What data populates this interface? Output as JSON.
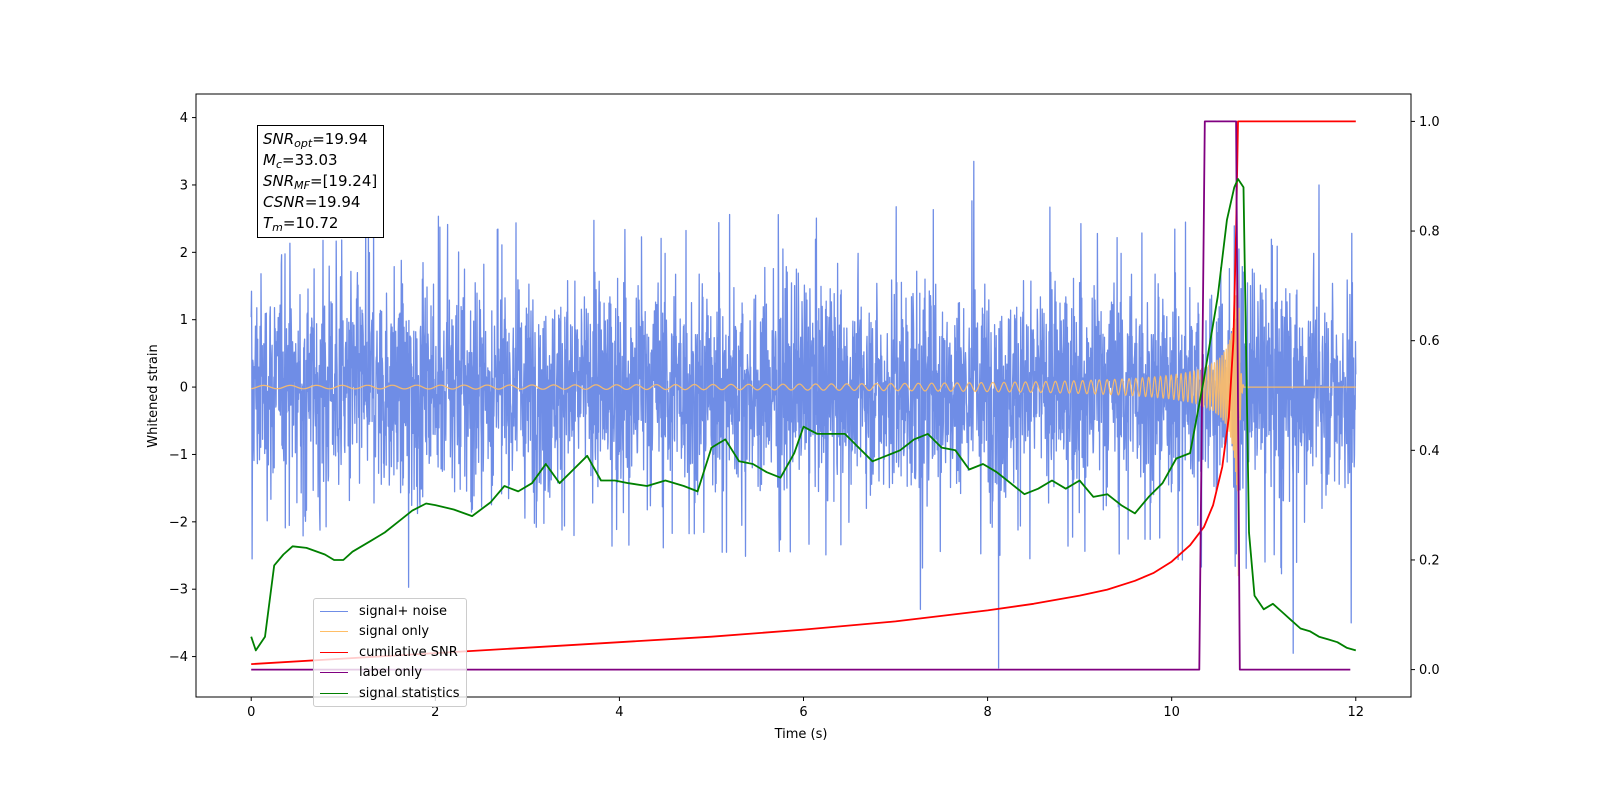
{
  "chart_data": {
    "type": "line",
    "title": "",
    "xlabel": "Time (s)",
    "ylabel": "Whitened strain",
    "y2label": "",
    "xlim": [
      -0.6,
      12.6
    ],
    "ylim": [
      -4.6,
      4.35
    ],
    "y2lim": [
      -0.05,
      1.05
    ],
    "xticks": [
      0,
      2,
      4,
      6,
      8,
      10,
      12
    ],
    "yticks": [
      -4,
      -3,
      -2,
      -1,
      0,
      1,
      2,
      3,
      4
    ],
    "y2ticks": [
      0.0,
      0.2,
      0.4,
      0.6,
      0.8,
      1.0
    ],
    "tick_labels": {
      "x": [
        "0",
        "2",
        "4",
        "6",
        "8",
        "10",
        "12"
      ],
      "y": [
        "−4",
        "−3",
        "−2",
        "−1",
        "0",
        "1",
        "2",
        "3",
        "4"
      ],
      "y2": [
        "0.0",
        "0.2",
        "0.4",
        "0.6",
        "0.8",
        "1.0"
      ]
    },
    "grid": false,
    "legend_position": "lower-left",
    "annotations": [
      {
        "sym": "SNR",
        "sub": "opt",
        "value": "=19.94"
      },
      {
        "sym": "M",
        "sub": "c",
        "value": "=33.03"
      },
      {
        "sym": "SNR",
        "sub": "MF",
        "value": "=[19.24]"
      },
      {
        "sym": "CSNR",
        "sub": "",
        "value": "=19.94"
      },
      {
        "sym": "T",
        "sub": "m",
        "value": "=10.72"
      }
    ],
    "series": [
      {
        "name": "signal+ noise",
        "axis": "left",
        "color": "#6f8de6",
        "kind": "noise",
        "x_range": [
          0,
          12
        ],
        "envelope_min": [
          -2.5,
          -2.0,
          -2.0,
          -2.2,
          -2.4,
          -2.5,
          -2.6,
          -2.7,
          -2.8,
          -2.5,
          -2.6,
          -2.9,
          -3.0
        ],
        "envelope_max": [
          2.0,
          2.4,
          2.6,
          2.6,
          2.5,
          2.6,
          2.6,
          2.7,
          3.0,
          2.6,
          2.5,
          2.4,
          2.3
        ],
        "spikes": [
          {
            "x": 8.12,
            "y": -4.17
          },
          {
            "x": 7.85,
            "y": 3.35
          },
          {
            "x": 11.95,
            "y": -3.5
          },
          {
            "x": 11.32,
            "y": -3.95
          },
          {
            "x": 11.6,
            "y": 3.0
          },
          {
            "x": 1.71,
            "y": -2.97
          },
          {
            "x": 7.27,
            "y": -3.3
          },
          {
            "x": 0.01,
            "y": -2.55
          }
        ]
      },
      {
        "name": "signal only",
        "axis": "left",
        "color": "#ffbe66",
        "kind": "chirp",
        "x_range": [
          0,
          12
        ],
        "merger_time": 10.72,
        "peak_amplitude": 2.0
      },
      {
        "name": "cumilative SNR",
        "axis": "right",
        "color": "#ff0000",
        "x": [
          0.0,
          1.0,
          2.0,
          3.0,
          4.0,
          5.0,
          6.0,
          7.0,
          7.5,
          8.0,
          8.5,
          9.0,
          9.3,
          9.6,
          9.8,
          10.0,
          10.2,
          10.35,
          10.45,
          10.55,
          10.62,
          10.67,
          10.7,
          10.72,
          10.75,
          11.0,
          12.0
        ],
        "y": [
          0.01,
          0.02,
          0.03,
          0.04,
          0.05,
          0.06,
          0.073,
          0.088,
          0.098,
          0.108,
          0.12,
          0.135,
          0.146,
          0.162,
          0.176,
          0.197,
          0.227,
          0.26,
          0.3,
          0.37,
          0.46,
          0.6,
          0.8,
          1.0,
          1.0,
          1.0,
          1.0
        ]
      },
      {
        "name": "label only",
        "axis": "right",
        "color": "#800080",
        "x": [
          0.0,
          10.3,
          10.36,
          10.7,
          10.74,
          11.94
        ],
        "y": [
          0.0,
          0.0,
          1.0,
          1.0,
          0.0,
          0.0
        ]
      },
      {
        "name": "signal statistics",
        "axis": "right",
        "color": "#008000",
        "x": [
          0.0,
          0.05,
          0.15,
          0.25,
          0.35,
          0.45,
          0.6,
          0.8,
          0.9,
          1.0,
          1.1,
          1.3,
          1.45,
          1.6,
          1.75,
          1.9,
          2.0,
          2.2,
          2.4,
          2.6,
          2.75,
          2.9,
          3.05,
          3.2,
          3.35,
          3.5,
          3.65,
          3.8,
          3.95,
          4.1,
          4.3,
          4.5,
          4.7,
          4.85,
          5.0,
          5.15,
          5.3,
          5.45,
          5.6,
          5.75,
          5.9,
          6.0,
          6.15,
          6.3,
          6.45,
          6.6,
          6.75,
          6.9,
          7.05,
          7.2,
          7.35,
          7.5,
          7.65,
          7.8,
          7.95,
          8.1,
          8.25,
          8.4,
          8.55,
          8.7,
          8.85,
          9.0,
          9.15,
          9.3,
          9.45,
          9.6,
          9.75,
          9.9,
          10.05,
          10.2,
          10.35,
          10.5,
          10.6,
          10.68,
          10.72,
          10.78,
          10.84,
          10.9,
          11.0,
          11.1,
          11.2,
          11.3,
          11.4,
          11.5,
          11.6,
          11.7,
          11.8,
          11.9,
          12.0
        ],
        "y": [
          0.06,
          0.035,
          0.06,
          0.19,
          0.21,
          0.225,
          0.222,
          0.21,
          0.2,
          0.2,
          0.215,
          0.235,
          0.25,
          0.27,
          0.29,
          0.303,
          0.3,
          0.292,
          0.28,
          0.305,
          0.335,
          0.325,
          0.34,
          0.375,
          0.34,
          0.365,
          0.39,
          0.345,
          0.345,
          0.34,
          0.335,
          0.345,
          0.335,
          0.325,
          0.405,
          0.42,
          0.38,
          0.375,
          0.36,
          0.35,
          0.395,
          0.443,
          0.43,
          0.43,
          0.43,
          0.405,
          0.38,
          0.39,
          0.4,
          0.42,
          0.43,
          0.405,
          0.4,
          0.365,
          0.375,
          0.36,
          0.34,
          0.32,
          0.33,
          0.345,
          0.33,
          0.345,
          0.315,
          0.32,
          0.3,
          0.285,
          0.315,
          0.34,
          0.385,
          0.395,
          0.53,
          0.68,
          0.82,
          0.88,
          0.895,
          0.88,
          0.25,
          0.135,
          0.11,
          0.12,
          0.105,
          0.09,
          0.075,
          0.07,
          0.06,
          0.055,
          0.05,
          0.04,
          0.035
        ]
      }
    ]
  }
}
